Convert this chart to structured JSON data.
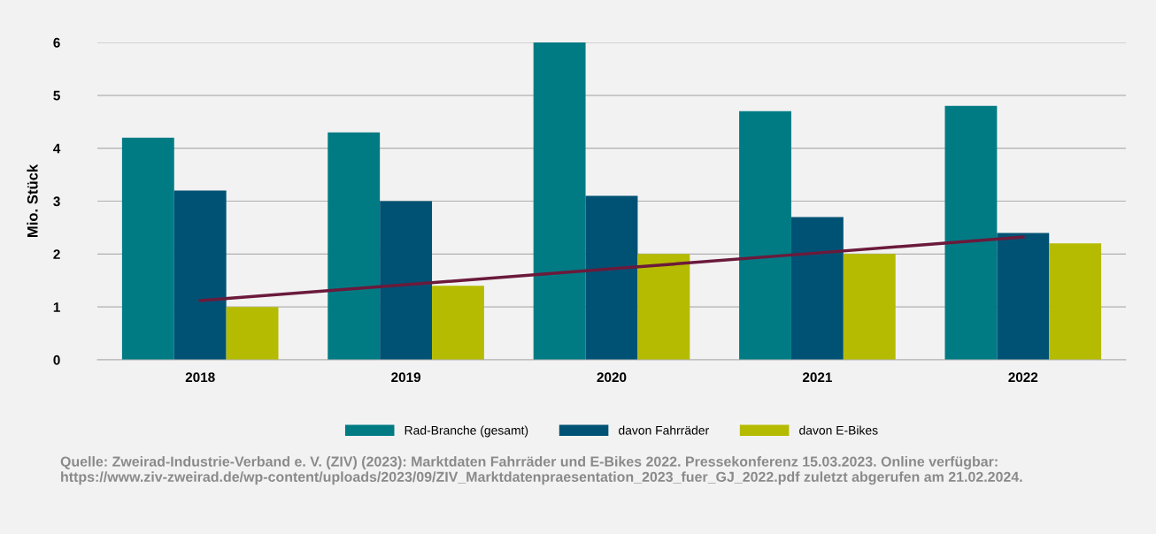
{
  "chart_data": {
    "type": "bar",
    "ylabel": "Mio. Stück",
    "categories": [
      "2018",
      "2019",
      "2020",
      "2021",
      "2022"
    ],
    "series": [
      {
        "name": "Rad-Branche (gesamt)",
        "color": "#007b84",
        "values": [
          4.2,
          4.3,
          6.0,
          4.7,
          4.8
        ]
      },
      {
        "name": "davon Fahrräder",
        "color": "#005275",
        "values": [
          3.2,
          3.0,
          3.1,
          2.7,
          2.4
        ]
      },
      {
        "name": "davon E-Bikes",
        "color": "#b5bb00",
        "values": [
          1.0,
          1.4,
          2.0,
          2.0,
          2.2
        ]
      },
      {
        "type": "line",
        "color": "#6b1a3b",
        "values": [
          1.12,
          1.42,
          1.72,
          2.02,
          2.32
        ]
      }
    ],
    "ylim": [
      0,
      6
    ],
    "yticks": [
      0,
      1,
      2,
      3,
      4,
      5,
      6
    ],
    "grid": "y",
    "legend": "bottom",
    "marker": "none",
    "line_style": "solid",
    "annotations": [
      "Quelle: Zweirad-Industrie-Verband e. V. (ZIV) (2023): Marktdaten Fahrräder und E-Bikes 2022. Pressekonferenz 15.03.2023. Online verfügbar: https://www.ziv-zweirad.de/wp-content/uploads/2023/09/ZIV_Marktdatenpraesentation_2023_fuer_GJ_2022.pdf zuletzt abgerufen am 21.02.2024."
    ]
  }
}
